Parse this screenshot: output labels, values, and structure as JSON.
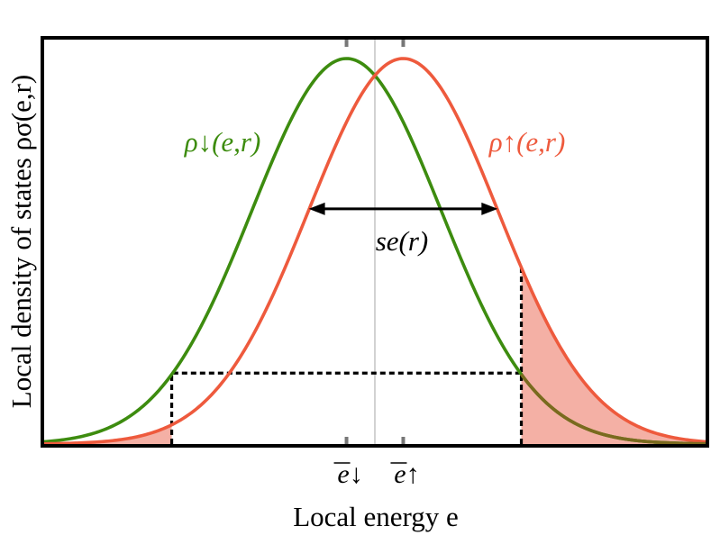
{
  "chart_data": {
    "type": "line",
    "ylabel": "Local density of states ρσ(e,r)",
    "xlabel": "Local energy e",
    "xlim": [
      -3.5,
      3.5
    ],
    "ylim": [
      0,
      1.02
    ],
    "series": [
      {
        "name": "ρ↓(e,r)",
        "color": "#3d8c0f",
        "mean": -0.3,
        "sd": 1.0,
        "peak": 1.0
      },
      {
        "name": "ρ↑(e,r)",
        "color": "#ee5a3d",
        "mean": 0.3,
        "sd": 1.0,
        "peak": 1.0
      }
    ],
    "mean_markers": [
      {
        "label": "e↓",
        "x": -0.3
      },
      {
        "label": "e↑",
        "x": 0.3
      }
    ],
    "center_line_x": 0.0,
    "width_annotation": {
      "label": "se(r)",
      "from": -0.7,
      "to": 1.3,
      "y": 0.61
    },
    "threshold_box": {
      "from": -2.15,
      "to": 1.55,
      "level": 0.184
    },
    "fill_color": "#f4b0a5"
  }
}
